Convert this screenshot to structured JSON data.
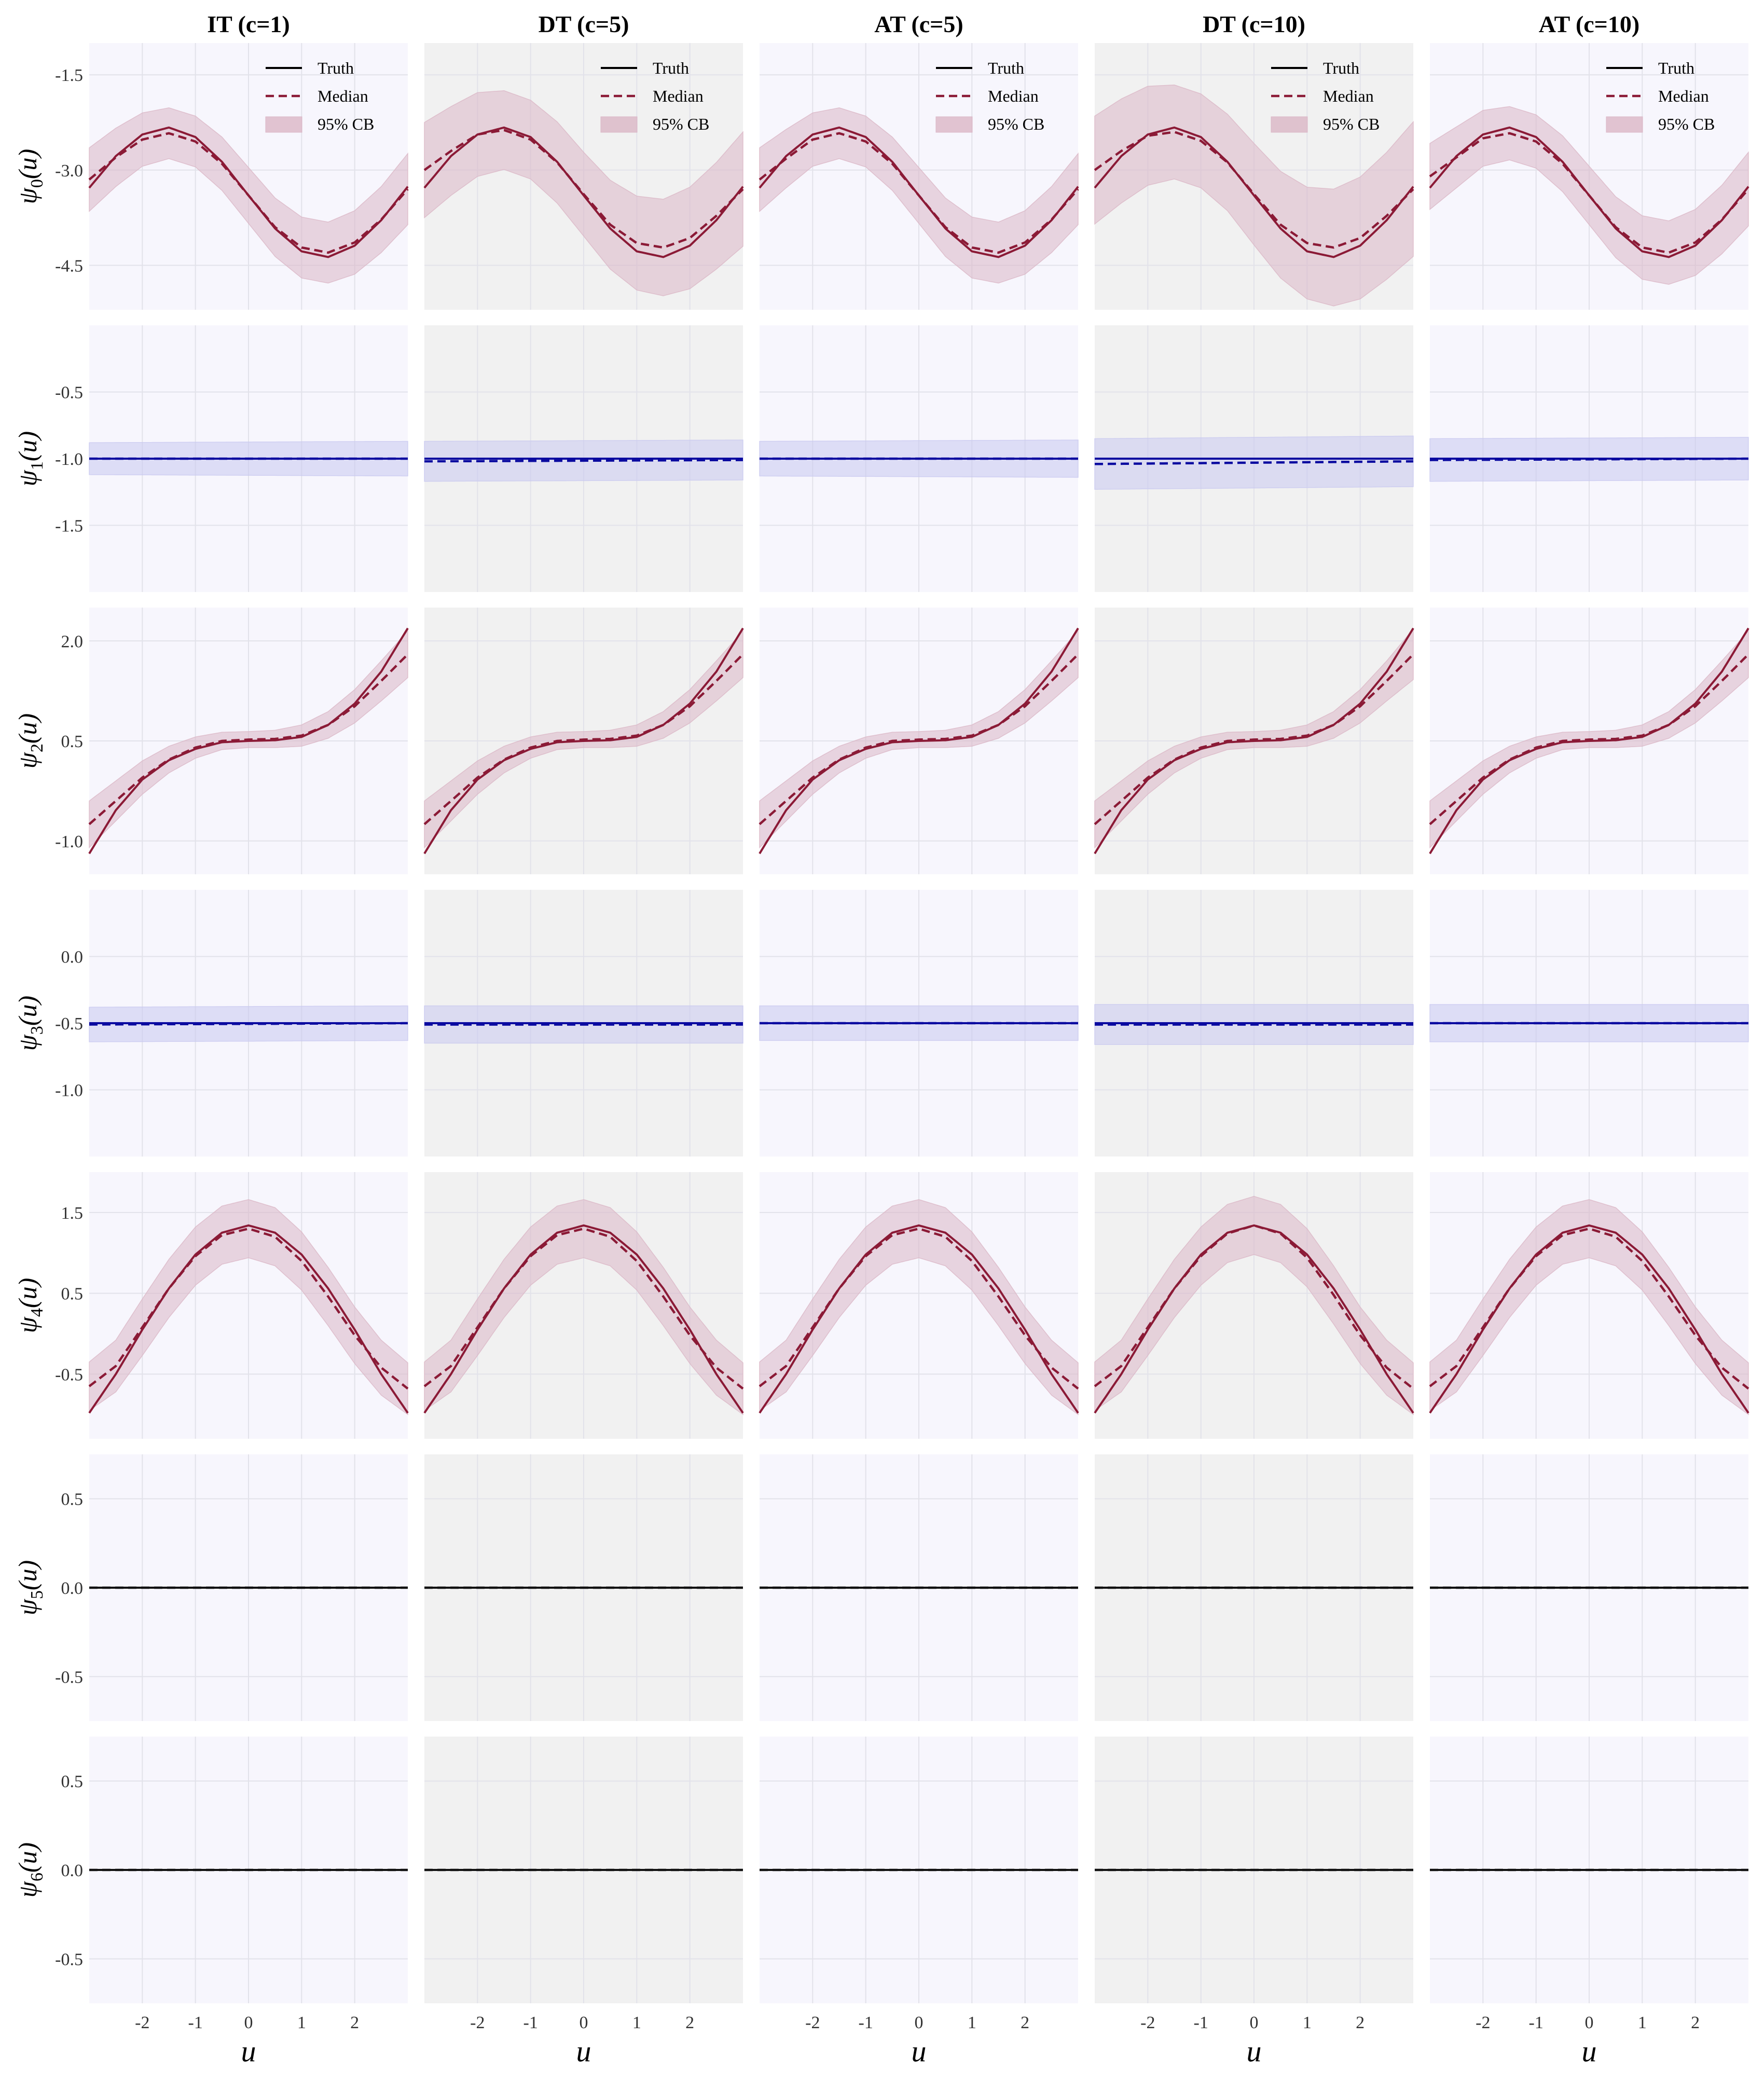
{
  "colors": {
    "panel_bg_light": "#f7f6fd",
    "panel_bg_gray": "#f1f1f1",
    "red_line": "#8b1a36",
    "red_band": "#dbb7c6",
    "blue_line": "#0a0aa0",
    "blue_band": "#c9c9f0",
    "zero_line": "#111111",
    "grid": "#e2e2ea"
  },
  "chart_data": {
    "type": "line",
    "layout": "small-multiples grid, 7 rows x 5 columns",
    "column_titles": [
      "IT (c=1)",
      "DT (c=5)",
      "AT (c=5)",
      "DT (c=10)",
      "AT (c=10)"
    ],
    "column_backgrounds": [
      "light",
      "gray",
      "light",
      "gray",
      "light"
    ],
    "row_labels": [
      "ψ₀(u)",
      "ψ₁(u)",
      "ψ₂(u)",
      "ψ₃(u)",
      "ψ₄(u)",
      "ψ₅(u)",
      "ψ₆(u)"
    ],
    "xlabel": "u",
    "xlim": [
      -3,
      3
    ],
    "x_ticks": [
      -2,
      -1,
      0,
      1,
      2
    ],
    "x_tick_labels": [
      "-2",
      "-1",
      "0",
      "1",
      "2"
    ],
    "legend": {
      "placement": "top-right",
      "shown_in_row": 0,
      "entries": [
        "Truth",
        "Median",
        "95% CB"
      ]
    },
    "grid": true,
    "rows": [
      {
        "name": "psi_0",
        "ylim": [
          -5.2,
          -1.0
        ],
        "y_ticks": [
          -1.5,
          -3.0,
          -4.5
        ],
        "y_tick_labels": [
          "-1.5",
          "-3.0",
          "-4.5"
        ],
        "color": "red",
        "truth": {
          "x": [
            -3.0,
            -2.5,
            -2.0,
            -1.5,
            -1.0,
            -0.5,
            0.0,
            0.5,
            1.0,
            1.5,
            2.0,
            2.5,
            3.0
          ],
          "y": [
            -3.28,
            -2.78,
            -2.44,
            -2.33,
            -2.48,
            -2.87,
            -3.4,
            -3.92,
            -4.28,
            -4.37,
            -4.19,
            -3.79,
            -3.26
          ]
        },
        "panels": [
          {
            "median": [
              -3.15,
              -2.8,
              -2.52,
              -2.42,
              -2.55,
              -2.9,
              -3.4,
              -3.9,
              -4.22,
              -4.3,
              -4.14,
              -3.78,
              -3.3
            ],
            "band_width": [
              0.5,
              0.46,
              0.42,
              0.4,
              0.4,
              0.42,
              0.44,
              0.46,
              0.48,
              0.48,
              0.5,
              0.52,
              0.56
            ]
          },
          {
            "median": [
              -3.0,
              -2.7,
              -2.44,
              -2.37,
              -2.52,
              -2.88,
              -3.38,
              -3.86,
              -4.15,
              -4.22,
              -4.07,
              -3.72,
              -3.3
            ],
            "band_width": [
              0.75,
              0.7,
              0.66,
              0.62,
              0.62,
              0.64,
              0.66,
              0.7,
              0.74,
              0.76,
              0.8,
              0.84,
              0.9
            ]
          },
          {
            "median": [
              -3.15,
              -2.82,
              -2.52,
              -2.42,
              -2.55,
              -2.9,
              -3.4,
              -3.9,
              -4.22,
              -4.3,
              -4.14,
              -3.78,
              -3.3
            ],
            "band_width": [
              0.5,
              0.46,
              0.42,
              0.4,
              0.4,
              0.42,
              0.44,
              0.46,
              0.48,
              0.48,
              0.5,
              0.52,
              0.56
            ]
          },
          {
            "median": [
              -3.0,
              -2.7,
              -2.46,
              -2.4,
              -2.54,
              -2.88,
              -3.38,
              -3.86,
              -4.15,
              -4.22,
              -4.07,
              -3.72,
              -3.3
            ],
            "band_width": [
              0.85,
              0.82,
              0.78,
              0.74,
              0.74,
              0.76,
              0.8,
              0.84,
              0.88,
              0.92,
              0.96,
              1.0,
              1.06
            ]
          },
          {
            "median": [
              -3.1,
              -2.8,
              -2.5,
              -2.42,
              -2.55,
              -2.9,
              -3.4,
              -3.9,
              -4.22,
              -4.3,
              -4.14,
              -3.78,
              -3.3
            ],
            "band_width": [
              0.52,
              0.48,
              0.44,
              0.42,
              0.42,
              0.44,
              0.46,
              0.48,
              0.5,
              0.5,
              0.52,
              0.54,
              0.58
            ]
          }
        ]
      },
      {
        "name": "psi_1",
        "ylim": [
          -2.0,
          0.0
        ],
        "y_ticks": [
          -0.5,
          -1.0,
          -1.5
        ],
        "y_tick_labels": [
          "-0.5",
          "-1.0",
          "-1.5"
        ],
        "color": "blue",
        "truth": {
          "x": [
            -3.0,
            3.0
          ],
          "y": [
            -1.0,
            -1.0
          ]
        },
        "panels": [
          {
            "median": [
              -1.0,
              -1.0
            ],
            "band_width": [
              0.12,
              0.13
            ]
          },
          {
            "median": [
              -1.02,
              -1.01
            ],
            "band_width": [
              0.15,
              0.15
            ]
          },
          {
            "median": [
              -1.0,
              -1.0
            ],
            "band_width": [
              0.13,
              0.14
            ]
          },
          {
            "median": [
              -1.04,
              -1.02
            ],
            "band_width": [
              0.19,
              0.19
            ]
          },
          {
            "median": [
              -1.01,
              -1.0
            ],
            "band_width": [
              0.16,
              0.16
            ]
          }
        ]
      },
      {
        "name": "psi_2",
        "ylim": [
          -1.5,
          2.5
        ],
        "y_ticks": [
          2.0,
          0.5,
          -1.0
        ],
        "y_tick_labels": [
          "2.0",
          "0.5",
          "-1.0"
        ],
        "color": "red",
        "truth": {
          "x": [
            -3.0,
            -2.5,
            -2.0,
            -1.5,
            -1.0,
            -0.5,
            0.0,
            0.5,
            1.0,
            1.5,
            2.0,
            2.5,
            3.0
          ],
          "y": [
            -1.19,
            -0.54,
            -0.08,
            0.21,
            0.38,
            0.48,
            0.5,
            0.51,
            0.56,
            0.74,
            1.06,
            1.54,
            2.19
          ]
        },
        "panels": [
          {
            "median": [
              -0.75,
              -0.4,
              -0.05,
              0.22,
              0.4,
              0.5,
              0.52,
              0.53,
              0.58,
              0.74,
              1.02,
              1.4,
              1.8
            ],
            "band_width": [
              0.35,
              0.3,
              0.25,
              0.2,
              0.16,
              0.13,
              0.12,
              0.13,
              0.16,
              0.2,
              0.25,
              0.3,
              0.35
            ]
          },
          {
            "median": [
              -0.75,
              -0.4,
              -0.05,
              0.22,
              0.4,
              0.5,
              0.52,
              0.53,
              0.58,
              0.74,
              1.02,
              1.4,
              1.8
            ],
            "band_width": [
              0.35,
              0.3,
              0.25,
              0.2,
              0.16,
              0.13,
              0.12,
              0.13,
              0.16,
              0.2,
              0.25,
              0.3,
              0.35
            ]
          },
          {
            "median": [
              -0.75,
              -0.4,
              -0.05,
              0.22,
              0.4,
              0.5,
              0.52,
              0.53,
              0.58,
              0.74,
              1.02,
              1.4,
              1.8
            ],
            "band_width": [
              0.35,
              0.3,
              0.25,
              0.2,
              0.16,
              0.13,
              0.12,
              0.13,
              0.16,
              0.2,
              0.25,
              0.3,
              0.35
            ]
          },
          {
            "median": [
              -0.75,
              -0.4,
              -0.05,
              0.22,
              0.4,
              0.5,
              0.52,
              0.53,
              0.58,
              0.74,
              1.02,
              1.4,
              1.8
            ],
            "band_width": [
              0.35,
              0.3,
              0.25,
              0.2,
              0.16,
              0.13,
              0.12,
              0.13,
              0.16,
              0.2,
              0.25,
              0.3,
              0.38
            ]
          },
          {
            "median": [
              -0.75,
              -0.4,
              -0.05,
              0.22,
              0.4,
              0.5,
              0.52,
              0.53,
              0.58,
              0.74,
              1.02,
              1.4,
              1.8
            ],
            "band_width": [
              0.35,
              0.3,
              0.25,
              0.2,
              0.16,
              0.13,
              0.12,
              0.13,
              0.16,
              0.2,
              0.25,
              0.3,
              0.35
            ]
          }
        ]
      },
      {
        "name": "psi_3",
        "ylim": [
          -1.5,
          0.5
        ],
        "y_ticks": [
          0.0,
          -0.5,
          -1.0
        ],
        "y_tick_labels": [
          "0.0",
          "-0.5",
          "-1.0"
        ],
        "color": "blue",
        "truth": {
          "x": [
            -3.0,
            3.0
          ],
          "y": [
            -0.5,
            -0.5
          ]
        },
        "panels": [
          {
            "median": [
              -0.51,
              -0.5
            ],
            "band_width": [
              0.13,
              0.13
            ]
          },
          {
            "median": [
              -0.51,
              -0.51
            ],
            "band_width": [
              0.14,
              0.14
            ]
          },
          {
            "median": [
              -0.5,
              -0.5
            ],
            "band_width": [
              0.13,
              0.13
            ]
          },
          {
            "median": [
              -0.51,
              -0.51
            ],
            "band_width": [
              0.15,
              0.15
            ]
          },
          {
            "median": [
              -0.5,
              -0.5
            ],
            "band_width": [
              0.14,
              0.14
            ]
          }
        ]
      },
      {
        "name": "psi_4",
        "ylim": [
          -1.3,
          2.0
        ],
        "y_ticks": [
          1.5,
          0.5,
          -0.5
        ],
        "y_tick_labels": [
          "1.5",
          "0.5",
          "-0.5"
        ],
        "color": "red",
        "truth": {
          "x": [
            -3.0,
            -2.5,
            -2.0,
            -1.5,
            -1.0,
            -0.5,
            0.0,
            0.5,
            1.0,
            1.5,
            2.0,
            2.5,
            3.0
          ],
          "y": [
            -0.98,
            -0.5,
            0.05,
            0.56,
            0.98,
            1.25,
            1.34,
            1.25,
            0.98,
            0.56,
            0.05,
            -0.5,
            -0.98
          ]
        },
        "panels": [
          {
            "median": [
              -0.65,
              -0.4,
              0.08,
              0.56,
              0.96,
              1.22,
              1.3,
              1.2,
              0.9,
              0.46,
              -0.02,
              -0.42,
              -0.68
            ],
            "band_width": [
              0.3,
              0.32,
              0.35,
              0.36,
              0.36,
              0.36,
              0.36,
              0.36,
              0.36,
              0.36,
              0.35,
              0.34,
              0.32
            ]
          },
          {
            "median": [
              -0.65,
              -0.4,
              0.08,
              0.56,
              0.96,
              1.22,
              1.3,
              1.2,
              0.9,
              0.46,
              -0.02,
              -0.42,
              -0.68
            ],
            "band_width": [
              0.3,
              0.32,
              0.35,
              0.36,
              0.36,
              0.36,
              0.36,
              0.36,
              0.36,
              0.36,
              0.35,
              0.34,
              0.32
            ]
          },
          {
            "median": [
              -0.65,
              -0.4,
              0.08,
              0.56,
              0.96,
              1.22,
              1.3,
              1.2,
              0.9,
              0.46,
              -0.02,
              -0.42,
              -0.68
            ],
            "band_width": [
              0.3,
              0.32,
              0.35,
              0.36,
              0.36,
              0.36,
              0.36,
              0.36,
              0.36,
              0.36,
              0.35,
              0.34,
              0.32
            ]
          },
          {
            "median": [
              -0.65,
              -0.4,
              0.08,
              0.56,
              0.96,
              1.24,
              1.34,
              1.24,
              0.94,
              0.48,
              -0.02,
              -0.42,
              -0.68
            ],
            "band_width": [
              0.3,
              0.32,
              0.35,
              0.36,
              0.36,
              0.36,
              0.36,
              0.36,
              0.36,
              0.36,
              0.35,
              0.34,
              0.32
            ]
          },
          {
            "median": [
              -0.65,
              -0.4,
              0.08,
              0.56,
              0.96,
              1.22,
              1.3,
              1.2,
              0.9,
              0.46,
              -0.02,
              -0.42,
              -0.68
            ],
            "band_width": [
              0.3,
              0.32,
              0.35,
              0.36,
              0.36,
              0.36,
              0.36,
              0.36,
              0.36,
              0.36,
              0.35,
              0.34,
              0.32
            ]
          }
        ]
      },
      {
        "name": "psi_5",
        "ylim": [
          -0.75,
          0.75
        ],
        "y_ticks": [
          0.5,
          0.0,
          -0.5
        ],
        "y_tick_labels": [
          "0.5",
          "0.0",
          "-0.5"
        ],
        "color": "black",
        "truth": {
          "x": [
            -3.0,
            3.0
          ],
          "y": [
            0.0,
            0.0
          ]
        },
        "panels": [
          {
            "median": [
              0.0,
              0.0
            ],
            "band_width": [
              0.0,
              0.0
            ]
          },
          {
            "median": [
              0.0,
              0.0
            ],
            "band_width": [
              0.0,
              0.0
            ]
          },
          {
            "median": [
              0.0,
              0.0
            ],
            "band_width": [
              0.0,
              0.0
            ]
          },
          {
            "median": [
              0.0,
              0.0
            ],
            "band_width": [
              0.0,
              0.0
            ]
          },
          {
            "median": [
              0.0,
              0.0
            ],
            "band_width": [
              0.0,
              0.0
            ]
          }
        ]
      },
      {
        "name": "psi_6",
        "ylim": [
          -0.75,
          0.75
        ],
        "y_ticks": [
          0.5,
          0.0,
          -0.5
        ],
        "y_tick_labels": [
          "0.5",
          "0.0",
          "-0.5"
        ],
        "color": "black",
        "truth": {
          "x": [
            -3.0,
            3.0
          ],
          "y": [
            0.0,
            0.0
          ]
        },
        "panels": [
          {
            "median": [
              0.0,
              0.0
            ],
            "band_width": [
              0.0,
              0.0
            ]
          },
          {
            "median": [
              0.0,
              0.0
            ],
            "band_width": [
              0.0,
              0.0
            ]
          },
          {
            "median": [
              0.0,
              0.0
            ],
            "band_width": [
              0.0,
              0.0
            ]
          },
          {
            "median": [
              0.0,
              0.0
            ],
            "band_width": [
              0.0,
              0.0
            ]
          },
          {
            "median": [
              0.0,
              0.0
            ],
            "band_width": [
              0.0,
              0.0
            ]
          }
        ]
      }
    ]
  }
}
